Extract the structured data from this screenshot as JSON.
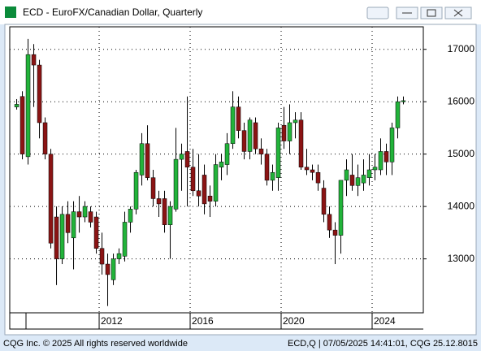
{
  "chart_data": {
    "type": "candlestick",
    "title": "ECD - EuroFX/Canadian Dollar, Quarterly",
    "footer_left": "CQG Inc. © 2025 All rights reserved worldwide",
    "footer_right": "ECD,Q | 07/05/2025 14:41:01, CQG 25.12.8015",
    "x": [
      2008.375,
      2008.625,
      2008.875,
      2009.125,
      2009.375,
      2009.625,
      2009.875,
      2010.125,
      2010.375,
      2010.625,
      2010.875,
      2011.125,
      2011.375,
      2011.625,
      2011.875,
      2012.125,
      2012.375,
      2012.625,
      2012.875,
      2013.125,
      2013.375,
      2013.625,
      2013.875,
      2014.125,
      2014.375,
      2014.625,
      2014.875,
      2015.125,
      2015.375,
      2015.625,
      2015.875,
      2016.125,
      2016.375,
      2016.625,
      2016.875,
      2017.125,
      2017.375,
      2017.625,
      2017.875,
      2018.125,
      2018.375,
      2018.625,
      2018.875,
      2019.125,
      2019.375,
      2019.625,
      2019.875,
      2020.125,
      2020.375,
      2020.625,
      2020.875,
      2021.125,
      2021.375,
      2021.625,
      2021.875,
      2022.125,
      2022.375,
      2022.625,
      2022.875,
      2023.125,
      2023.375,
      2023.625,
      2023.875,
      2024.125,
      2024.375,
      2024.625,
      2024.875,
      2025.125,
      2025.375
    ],
    "open": [
      15900,
      16100,
      14950,
      16900,
      16700,
      15600,
      15000,
      13800,
      13000,
      13850,
      13400,
      13900,
      13800,
      13900,
      13800,
      13200,
      12900,
      12600,
      13000,
      13050,
      13700,
      13950,
      14600,
      15200,
      14550,
      14150,
      14150,
      13650,
      13950,
      14900,
      15050,
      14750,
      14300,
      14600,
      14200,
      14100,
      14750,
      14800,
      15200,
      15900,
      15450,
      15050,
      15600,
      15100,
      15000,
      14500,
      14550,
      15550,
      15250,
      15600,
      15650,
      14750,
      14700,
      14650,
      14350,
      13850,
      13550,
      13450,
      14500,
      14600,
      14400,
      14450,
      14550,
      14700,
      14700,
      15050,
      14850,
      15500,
      16000
    ],
    "high": [
      16050,
      16200,
      17200,
      17100,
      16800,
      15700,
      15100,
      14000,
      14000,
      14100,
      14100,
      14200,
      14100,
      14000,
      13900,
      13500,
      13100,
      13100,
      13200,
      13900,
      14000,
      14700,
      15400,
      15550,
      14700,
      14300,
      14300,
      14100,
      15500,
      15200,
      16100,
      15100,
      15000,
      14800,
      14400,
      15000,
      15000,
      15400,
      16200,
      16100,
      15600,
      15700,
      15700,
      15300,
      15100,
      14800,
      15600,
      15900,
      15950,
      15800,
      15800,
      15100,
      14800,
      14800,
      14500,
      14000,
      13700,
      14500,
      14900,
      15000,
      14800,
      14900,
      15000,
      15000,
      15300,
      15200,
      15600,
      16100,
      16100
    ],
    "low": [
      15850,
      14900,
      14800,
      15900,
      15300,
      14900,
      13200,
      12500,
      12900,
      13300,
      12800,
      13500,
      13700,
      13600,
      13100,
      12700,
      12100,
      12500,
      12900,
      12950,
      13500,
      13850,
      14400,
      14500,
      14000,
      13800,
      13500,
      13000,
      13900,
      14300,
      14000,
      14200,
      14000,
      13850,
      13800,
      14000,
      14500,
      14600,
      15100,
      15300,
      14900,
      14900,
      15000,
      14800,
      14400,
      14300,
      14300,
      15100,
      15000,
      15300,
      14700,
      14600,
      14500,
      14300,
      13700,
      13400,
      12900,
      13100,
      14200,
      14300,
      14200,
      14300,
      14400,
      14500,
      14600,
      14600,
      14600,
      15300,
      15950
    ],
    "close": [
      15950,
      15000,
      16900,
      16700,
      15600,
      15000,
      13300,
      13000,
      13850,
      13500,
      13900,
      13800,
      14000,
      13700,
      13200,
      12900,
      12700,
      13000,
      13100,
      13700,
      13950,
      14650,
      15200,
      14550,
      14150,
      14050,
      13650,
      14000,
      14900,
      15000,
      14750,
      14300,
      14200,
      14050,
      14100,
      14800,
      14850,
      15200,
      15900,
      15450,
      15050,
      15650,
      15100,
      15000,
      14500,
      14650,
      15500,
      15250,
      15600,
      15650,
      14750,
      14700,
      14650,
      14450,
      13850,
      13550,
      13450,
      14500,
      14700,
      14400,
      14550,
      14600,
      14700,
      14750,
      15050,
      14850,
      15500,
      16000,
      16020
    ],
    "up_color": "#22b33a",
    "down_color": "#8b1414",
    "xlim": [
      2008.07,
      2026.25
    ],
    "xticks": [
      2012,
      2016,
      2020,
      2024
    ],
    "ylim": [
      11970,
      17430
    ],
    "yticks": [
      13000,
      14000,
      15000,
      16000,
      17000
    ],
    "grid": true
  }
}
